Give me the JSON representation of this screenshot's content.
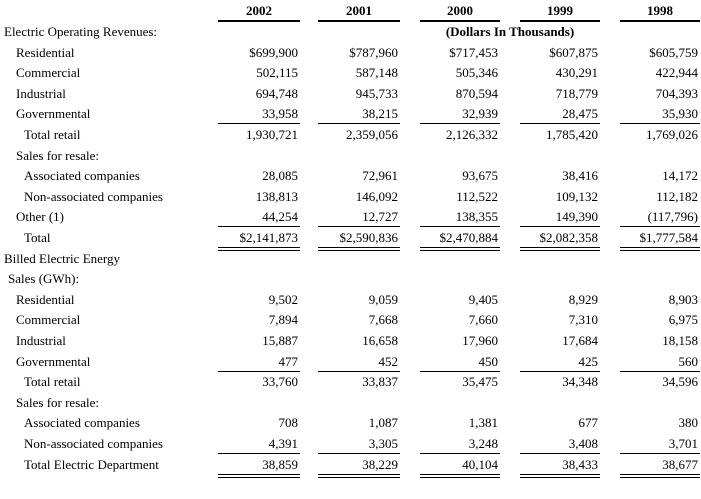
{
  "table": {
    "columns": [
      "2002",
      "2001",
      "2000",
      "1999",
      "1998"
    ],
    "unit_note": "(Dollars In Thousands)",
    "rows": [
      {
        "label": "Electric Operating Revenues:"
      },
      {
        "label": "Residential",
        "values": [
          "$699,900",
          "$787,960",
          "$717,453",
          "$607,875",
          "$605,759"
        ]
      },
      {
        "label": "Commercial",
        "values": [
          "502,115",
          "587,148",
          "505,346",
          "430,291",
          "422,944"
        ]
      },
      {
        "label": "Industrial",
        "values": [
          "694,748",
          "945,733",
          "870,594",
          "718,779",
          "704,393"
        ]
      },
      {
        "label": "Governmental",
        "values": [
          "33,958",
          "38,215",
          "32,939",
          "28,475",
          "35,930"
        ]
      },
      {
        "label": "Total retail",
        "values": [
          "1,930,721",
          "2,359,056",
          "2,126,332",
          "1,785,420",
          "1,769,026"
        ]
      },
      {
        "label": "Sales for resale:"
      },
      {
        "label": "Associated companies",
        "values": [
          "28,085",
          "72,961",
          "93,675",
          "38,416",
          "14,172"
        ]
      },
      {
        "label": "Non-associated companies",
        "values": [
          "138,813",
          "146,092",
          "112,522",
          "109,132",
          "112,182"
        ]
      },
      {
        "label": "Other (1)",
        "values": [
          "44,254",
          "12,727",
          "138,355",
          "149,390",
          "(117,796)"
        ]
      },
      {
        "label": "Total",
        "values": [
          "$2,141,873",
          "$2,590,836",
          "$2,470,884",
          "$2,082,358",
          "$1,777,584"
        ]
      },
      {
        "label": "Billed Electric Energy"
      },
      {
        "label": "Sales (GWh):"
      },
      {
        "label": "Residential",
        "values": [
          "9,502",
          "9,059",
          "9,405",
          "8,929",
          "8,903"
        ]
      },
      {
        "label": "Commercial",
        "values": [
          "7,894",
          "7,668",
          "7,660",
          "7,310",
          "6,975"
        ]
      },
      {
        "label": "Industrial",
        "values": [
          "15,887",
          "16,658",
          "17,960",
          "17,684",
          "18,158"
        ]
      },
      {
        "label": "Governmental",
        "values": [
          "477",
          "452",
          "450",
          "425",
          "560"
        ]
      },
      {
        "label": "Total retail",
        "values": [
          "33,760",
          "33,837",
          "35,475",
          "34,348",
          "34,596"
        ]
      },
      {
        "label": "Sales for resale:"
      },
      {
        "label": "Associated companies",
        "values": [
          "708",
          "1,087",
          "1,381",
          "677",
          "380"
        ]
      },
      {
        "label": "Non-associated companies",
        "values": [
          "4,391",
          "3,305",
          "3,248",
          "3,408",
          "3,701"
        ]
      },
      {
        "label": "Total Electric Department",
        "values": [
          "38,859",
          "38,229",
          "40,104",
          "38,433",
          "38,677"
        ]
      }
    ]
  }
}
